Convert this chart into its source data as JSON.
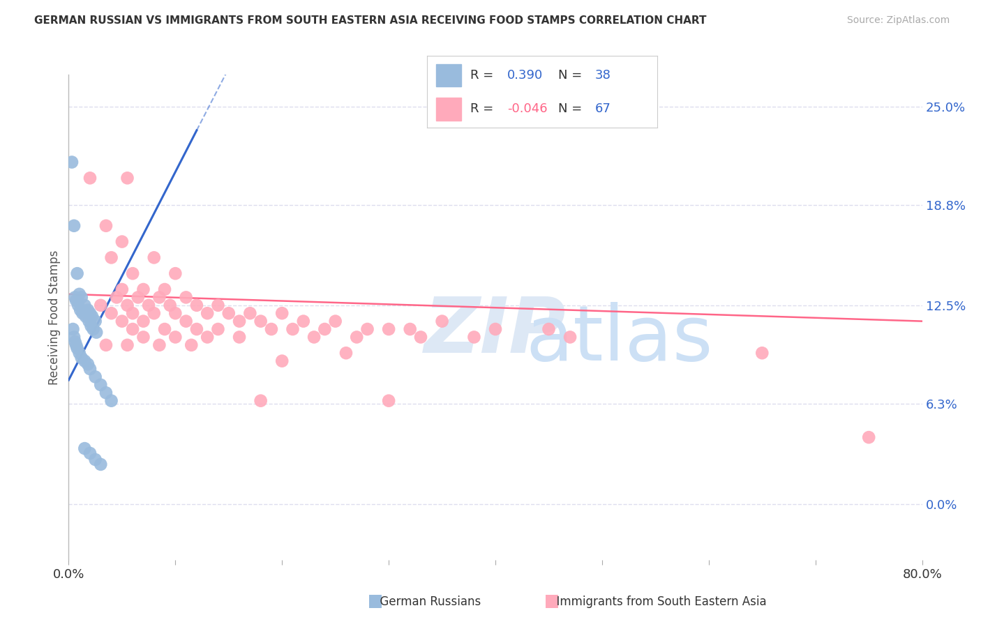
{
  "title": "GERMAN RUSSIAN VS IMMIGRANTS FROM SOUTH EASTERN ASIA RECEIVING FOOD STAMPS CORRELATION CHART",
  "source": "Source: ZipAtlas.com",
  "ylabel": "Receiving Food Stamps",
  "ytick_values": [
    0.0,
    6.3,
    12.5,
    18.8,
    25.0
  ],
  "xlim": [
    0.0,
    80.0
  ],
  "ylim": [
    -3.5,
    27.0
  ],
  "blue_color": "#99bbdd",
  "pink_color": "#ffaabb",
  "blue_line_color": "#3366cc",
  "pink_line_color": "#ff6688",
  "grid_color": "#ddddee",
  "background_color": "#ffffff",
  "blue_scatter": [
    [
      0.3,
      21.5
    ],
    [
      0.5,
      17.5
    ],
    [
      0.8,
      14.5
    ],
    [
      1.0,
      13.2
    ],
    [
      1.2,
      13.0
    ],
    [
      1.5,
      12.5
    ],
    [
      1.8,
      12.2
    ],
    [
      2.0,
      12.0
    ],
    [
      2.2,
      11.8
    ],
    [
      2.5,
      11.5
    ],
    [
      0.6,
      13.0
    ],
    [
      0.7,
      12.8
    ],
    [
      0.9,
      12.5
    ],
    [
      1.1,
      12.2
    ],
    [
      1.3,
      12.0
    ],
    [
      1.6,
      11.8
    ],
    [
      1.9,
      11.5
    ],
    [
      2.1,
      11.2
    ],
    [
      2.3,
      11.0
    ],
    [
      2.6,
      10.8
    ],
    [
      0.4,
      11.0
    ],
    [
      0.5,
      10.5
    ],
    [
      0.6,
      10.2
    ],
    [
      0.7,
      10.0
    ],
    [
      0.8,
      9.8
    ],
    [
      1.0,
      9.5
    ],
    [
      1.2,
      9.2
    ],
    [
      1.5,
      9.0
    ],
    [
      1.8,
      8.8
    ],
    [
      2.0,
      8.5
    ],
    [
      2.5,
      8.0
    ],
    [
      3.0,
      7.5
    ],
    [
      3.5,
      7.0
    ],
    [
      4.0,
      6.5
    ],
    [
      1.5,
      3.5
    ],
    [
      2.0,
      3.2
    ],
    [
      2.5,
      2.8
    ],
    [
      3.0,
      2.5
    ]
  ],
  "pink_scatter": [
    [
      2.0,
      20.5
    ],
    [
      5.5,
      20.5
    ],
    [
      3.5,
      17.5
    ],
    [
      5.0,
      16.5
    ],
    [
      4.0,
      15.5
    ],
    [
      8.0,
      15.5
    ],
    [
      6.0,
      14.5
    ],
    [
      10.0,
      14.5
    ],
    [
      5.0,
      13.5
    ],
    [
      7.0,
      13.5
    ],
    [
      9.0,
      13.5
    ],
    [
      4.5,
      13.0
    ],
    [
      6.5,
      13.0
    ],
    [
      8.5,
      13.0
    ],
    [
      11.0,
      13.0
    ],
    [
      3.0,
      12.5
    ],
    [
      5.5,
      12.5
    ],
    [
      7.5,
      12.5
    ],
    [
      9.5,
      12.5
    ],
    [
      12.0,
      12.5
    ],
    [
      14.0,
      12.5
    ],
    [
      4.0,
      12.0
    ],
    [
      6.0,
      12.0
    ],
    [
      8.0,
      12.0
    ],
    [
      10.0,
      12.0
    ],
    [
      13.0,
      12.0
    ],
    [
      15.0,
      12.0
    ],
    [
      17.0,
      12.0
    ],
    [
      20.0,
      12.0
    ],
    [
      5.0,
      11.5
    ],
    [
      7.0,
      11.5
    ],
    [
      11.0,
      11.5
    ],
    [
      16.0,
      11.5
    ],
    [
      18.0,
      11.5
    ],
    [
      22.0,
      11.5
    ],
    [
      25.0,
      11.5
    ],
    [
      35.0,
      11.5
    ],
    [
      6.0,
      11.0
    ],
    [
      9.0,
      11.0
    ],
    [
      12.0,
      11.0
    ],
    [
      14.0,
      11.0
    ],
    [
      19.0,
      11.0
    ],
    [
      21.0,
      11.0
    ],
    [
      24.0,
      11.0
    ],
    [
      28.0,
      11.0
    ],
    [
      30.0,
      11.0
    ],
    [
      32.0,
      11.0
    ],
    [
      40.0,
      11.0
    ],
    [
      45.0,
      11.0
    ],
    [
      7.0,
      10.5
    ],
    [
      10.0,
      10.5
    ],
    [
      13.0,
      10.5
    ],
    [
      16.0,
      10.5
    ],
    [
      23.0,
      10.5
    ],
    [
      27.0,
      10.5
    ],
    [
      33.0,
      10.5
    ],
    [
      38.0,
      10.5
    ],
    [
      3.5,
      10.0
    ],
    [
      5.5,
      10.0
    ],
    [
      8.5,
      10.0
    ],
    [
      11.5,
      10.0
    ],
    [
      26.0,
      9.5
    ],
    [
      20.0,
      9.0
    ],
    [
      18.0,
      6.5
    ],
    [
      30.0,
      6.5
    ],
    [
      47.0,
      10.5
    ],
    [
      65.0,
      9.5
    ],
    [
      75.0,
      4.2
    ]
  ],
  "blue_trendline_solid": [
    [
      0.0,
      7.8
    ],
    [
      12.0,
      23.5
    ]
  ],
  "blue_trendline_dashed": [
    [
      12.0,
      23.5
    ],
    [
      17.0,
      30.0
    ]
  ],
  "pink_trendline": [
    [
      0.0,
      13.2
    ],
    [
      80.0,
      11.5
    ]
  ]
}
